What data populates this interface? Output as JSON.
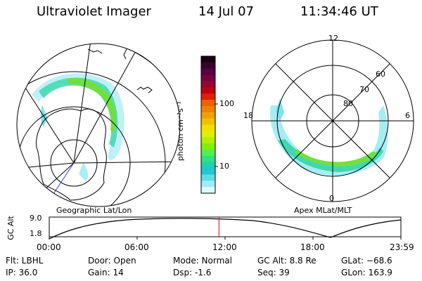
{
  "header": {
    "instrument": "Ultraviolet Imager",
    "date": "14 Jul 07",
    "time": "11:34:46 UT"
  },
  "geo_map": {
    "label": "Geographic Lat/Lon"
  },
  "apex_map": {
    "label": "Apex MLat/MLT",
    "mlt_labels": [
      "12",
      "18",
      "6",
      "0"
    ],
    "mlat_labels": [
      "60",
      "70",
      "80"
    ]
  },
  "colorbar": {
    "unit": "photon cm⁻²s⁻¹",
    "ticks": [
      "100",
      "10"
    ],
    "colors": [
      "#1a0010",
      "#3a0030",
      "#5a0040",
      "#7a0040",
      "#9a0030",
      "#c00010",
      "#e02000",
      "#f06000",
      "#f08000",
      "#f0a000",
      "#f0c000",
      "#f0e000",
      "#e0f000",
      "#b0f000",
      "#80f000",
      "#50f050",
      "#30e080",
      "#20d0b0",
      "#20c8d0",
      "#60dce8",
      "#a0ecf4",
      "#e0f8fc"
    ]
  },
  "altitude_plot": {
    "ylabel": "GC Alt",
    "yticks": [
      "9.0",
      "1.8"
    ],
    "xticks": [
      "00:00",
      "06:00",
      "12:00",
      "18:00",
      "23:59"
    ],
    "current_hour": 11.58
  },
  "info": {
    "flt": "Flt: LBHL",
    "ip": "IP: 36.0",
    "door": "Door: Open",
    "gain": "Gain: 14",
    "mode": "Mode: Normal",
    "dsp": "Dsp:    -1.6",
    "gcalt": "GC Alt: 8.8 Re",
    "seq": "Seq: 39",
    "glat": "GLat: −68.6",
    "glon": "GLon: 163.9"
  }
}
